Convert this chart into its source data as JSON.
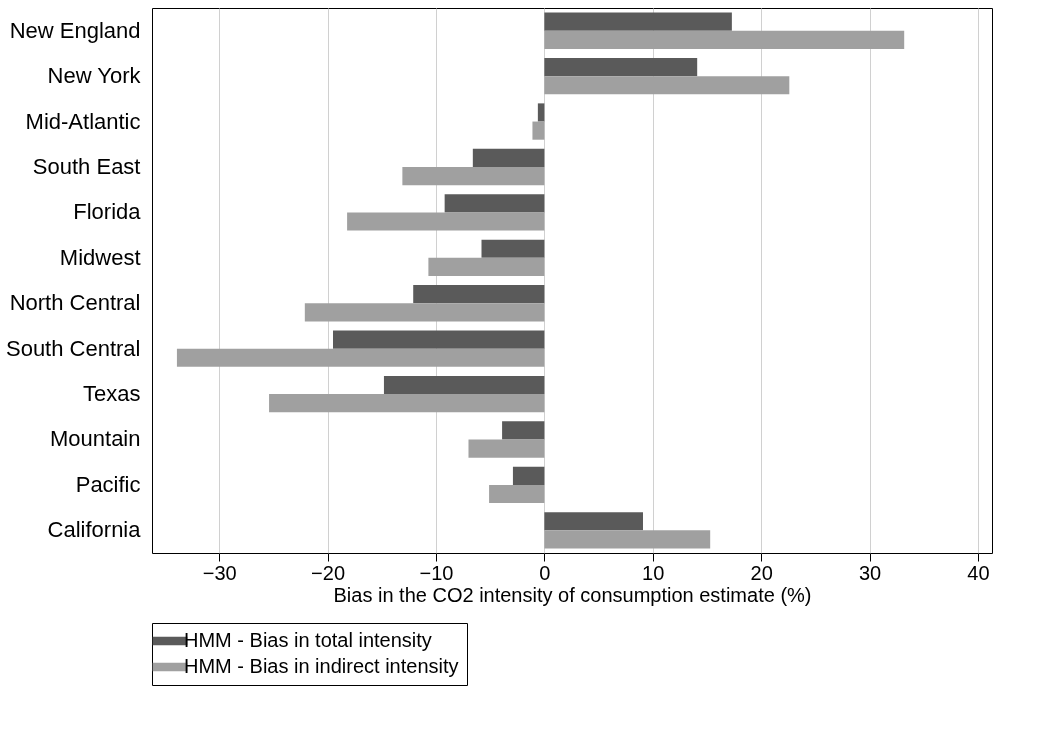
{
  "chart_data": {
    "type": "bar",
    "orientation": "horizontal",
    "xlabel": "Bias in the CO2 intensity of consumption estimate (%)",
    "categories": [
      "New England",
      "New York",
      "Mid-Atlantic",
      "South East",
      "Florida",
      "Midwest",
      "North Central",
      "South Central",
      "Texas",
      "Mountain",
      "Pacific",
      "California"
    ],
    "series": [
      {
        "name": "HMM - Bias in total intensity",
        "color": "#5a5a5a",
        "values": [
          17.3,
          14.1,
          -0.6,
          -6.6,
          -9.2,
          -5.8,
          -12.1,
          -19.5,
          -14.8,
          -3.9,
          -2.9,
          9.1
        ]
      },
      {
        "name": "HMM - Bias in indirect intensity",
        "color": "#a0a0a0",
        "values": [
          33.2,
          22.6,
          -1.1,
          -13.1,
          -18.2,
          -10.7,
          -22.1,
          -33.9,
          -25.4,
          -7.0,
          -5.1,
          15.3
        ]
      }
    ],
    "xlim": [
      -36.2,
      41.3
    ],
    "xticks": [
      -30,
      -20,
      -10,
      0,
      10,
      20,
      30,
      40
    ],
    "grid": "x",
    "legend": "bottom"
  }
}
